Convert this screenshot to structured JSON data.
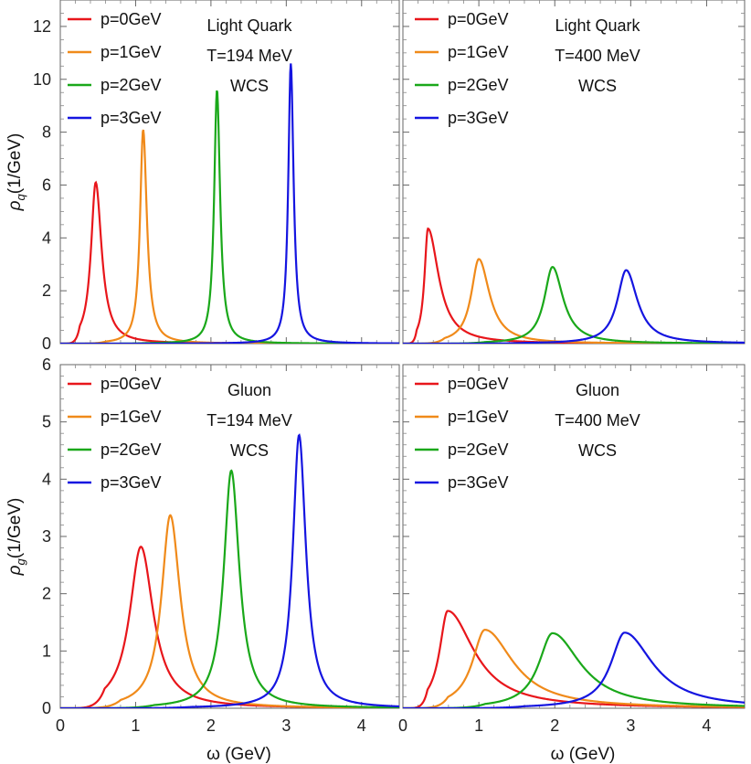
{
  "chart_data": [
    {
      "type": "line",
      "panel": "top-left",
      "xlim": [
        0,
        4.5
      ],
      "ylim": [
        0,
        13
      ],
      "xticks": [],
      "yticks": [
        "0",
        "2",
        "4",
        "6",
        "8",
        "10",
        "12"
      ],
      "ylabel": {
        "main": "ρ",
        "sub": "q",
        "unit": "(1/GeV)"
      },
      "xlabel": "",
      "annotations": [
        "Light Quark",
        "T=194 MeV",
        "WCS"
      ],
      "series": [
        {
          "name": "p=0GeV",
          "color": "#e8161b",
          "peak_x": 0.47,
          "peak_y": 6.1,
          "width_left": 0.075,
          "width_right": 0.095
        },
        {
          "name": "p=1GeV",
          "color": "#f08a1a",
          "peak_x": 1.1,
          "peak_y": 8.1,
          "width_left": 0.05,
          "width_right": 0.06
        },
        {
          "name": "p=2GeV",
          "color": "#1aa81a",
          "peak_x": 2.08,
          "peak_y": 9.6,
          "width_left": 0.045,
          "width_right": 0.05
        },
        {
          "name": "p=3GeV",
          "color": "#1515e0",
          "peak_x": 3.06,
          "peak_y": 10.6,
          "width_left": 0.04,
          "width_right": 0.045
        }
      ]
    },
    {
      "type": "line",
      "panel": "top-right",
      "xlim": [
        0,
        4.5
      ],
      "ylim": [
        0,
        13
      ],
      "xticks": [],
      "yticks": [],
      "xlabel": "",
      "annotations": [
        "Light Quark",
        "T=400 MeV",
        "WCS"
      ],
      "series": [
        {
          "name": "p=0GeV",
          "color": "#e8161b",
          "peak_x": 0.33,
          "peak_y": 4.35,
          "width_left": 0.055,
          "width_right": 0.17
        },
        {
          "name": "p=1GeV",
          "color": "#f08a1a",
          "peak_x": 1.0,
          "peak_y": 3.2,
          "width_left": 0.12,
          "width_right": 0.17
        },
        {
          "name": "p=2GeV",
          "color": "#1aa81a",
          "peak_x": 1.97,
          "peak_y": 2.9,
          "width_left": 0.13,
          "width_right": 0.17
        },
        {
          "name": "p=3GeV",
          "color": "#1515e0",
          "peak_x": 2.94,
          "peak_y": 2.78,
          "width_left": 0.14,
          "width_right": 0.18
        }
      ]
    },
    {
      "type": "line",
      "panel": "bottom-left",
      "xlim": [
        0,
        4.5
      ],
      "ylim": [
        0,
        6
      ],
      "xticks": [
        "0",
        "1",
        "2",
        "3",
        "4"
      ],
      "yticks": [
        "0",
        "1",
        "2",
        "3",
        "4",
        "5",
        "6"
      ],
      "ylabel": {
        "main": "ρ",
        "sub": "g",
        "unit": "(1/GeV)"
      },
      "xlabel": "ω (GeV)",
      "annotations": [
        "Gluon",
        "T=194 MeV",
        "WCS"
      ],
      "series": [
        {
          "name": "p=0GeV",
          "color": "#e8161b",
          "peak_x": 1.07,
          "peak_y": 2.82,
          "width_left": 0.18,
          "width_right": 0.2
        },
        {
          "name": "p=1GeV",
          "color": "#f08a1a",
          "peak_x": 1.46,
          "peak_y": 3.37,
          "width_left": 0.14,
          "width_right": 0.16
        },
        {
          "name": "p=2GeV",
          "color": "#1aa81a",
          "peak_x": 2.27,
          "peak_y": 4.15,
          "width_left": 0.12,
          "width_right": 0.13
        },
        {
          "name": "p=3GeV",
          "color": "#1515e0",
          "peak_x": 3.17,
          "peak_y": 4.77,
          "width_left": 0.1,
          "width_right": 0.11
        }
      ]
    },
    {
      "type": "line",
      "panel": "bottom-right",
      "xlim": [
        0,
        4.5
      ],
      "ylim": [
        0,
        6
      ],
      "xticks": [
        "0",
        "1",
        "2",
        "3",
        "4"
      ],
      "yticks": [],
      "xlabel": "ω (GeV)",
      "annotations": [
        "Gluon",
        "T=400 MeV",
        "WCS"
      ],
      "series": [
        {
          "name": "p=0GeV",
          "color": "#e8161b",
          "peak_x": 0.59,
          "peak_y": 1.7,
          "width_left": 0.13,
          "width_right": 0.42
        },
        {
          "name": "p=1GeV",
          "color": "#f08a1a",
          "peak_x": 1.08,
          "peak_y": 1.37,
          "width_left": 0.2,
          "width_right": 0.45
        },
        {
          "name": "p=2GeV",
          "color": "#1aa81a",
          "peak_x": 1.97,
          "peak_y": 1.31,
          "width_left": 0.22,
          "width_right": 0.45
        },
        {
          "name": "p=3GeV",
          "color": "#1515e0",
          "peak_x": 2.92,
          "peak_y": 1.32,
          "width_left": 0.22,
          "width_right": 0.45
        }
      ]
    }
  ]
}
